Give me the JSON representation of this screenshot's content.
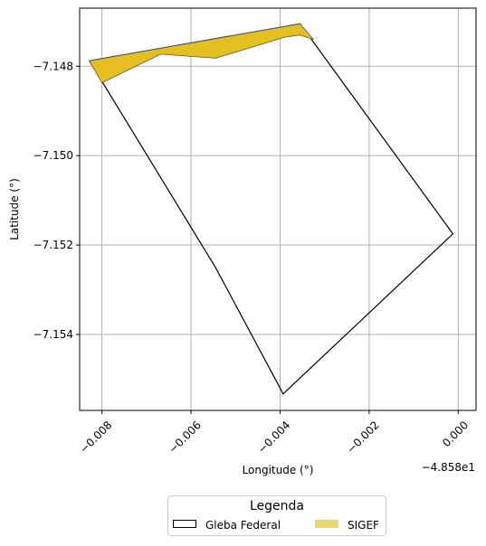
{
  "chart_data": {
    "type": "map",
    "xlabel": "Longitude (°)",
    "ylabel": "Latitude (°)",
    "x_offset_label": "−4.858e1",
    "x_offset": -48.58,
    "xlim": [
      -0.0085,
      0.0004
    ],
    "ylim": [
      -7.1557,
      -7.1467
    ],
    "x_ticks": [
      -0.008,
      -0.006,
      -0.004,
      -0.002,
      0.0
    ],
    "x_tick_labels": [
      "−0.008",
      "−0.006",
      "−0.004",
      "−0.002",
      "0.000"
    ],
    "y_ticks": [
      -7.148,
      -7.15,
      -7.152,
      -7.154
    ],
    "y_tick_labels": [
      "−7.148",
      "−7.150",
      "−7.152",
      "−7.154"
    ],
    "grid": true,
    "layers": [
      {
        "name": "Gleba Federal",
        "fill": "none",
        "stroke": "#000000",
        "polygon": [
          [
            -0.00828,
            -7.14788
          ],
          [
            -0.00355,
            -7.14705
          ],
          [
            -0.00012,
            -7.15175
          ],
          [
            -0.00393,
            -7.15533
          ],
          [
            -0.00545,
            -7.1525
          ],
          [
            -0.00828,
            -7.14788
          ]
        ]
      },
      {
        "name": "SIGEF",
        "fill": "#e3bf22",
        "stroke": "#555555",
        "polygon": [
          [
            -0.00828,
            -7.14788
          ],
          [
            -0.00355,
            -7.14705
          ],
          [
            -0.00325,
            -7.1474
          ],
          [
            -0.00355,
            -7.1473
          ],
          [
            -0.0039,
            -7.14735
          ],
          [
            -0.00445,
            -7.14752
          ],
          [
            -0.00545,
            -7.14782
          ],
          [
            -0.00668,
            -7.14773
          ],
          [
            -0.008,
            -7.14837
          ],
          [
            -0.00828,
            -7.14788
          ]
        ]
      }
    ],
    "legend_position": "bottom-center"
  },
  "legend": {
    "title": "Legenda",
    "items": [
      {
        "label": "Gleba Federal",
        "fill": "#ffffff",
        "stroke": "#000000"
      },
      {
        "label": "SIGEF",
        "fill": "#e9d66e",
        "stroke": "#e9d66e"
      }
    ]
  }
}
